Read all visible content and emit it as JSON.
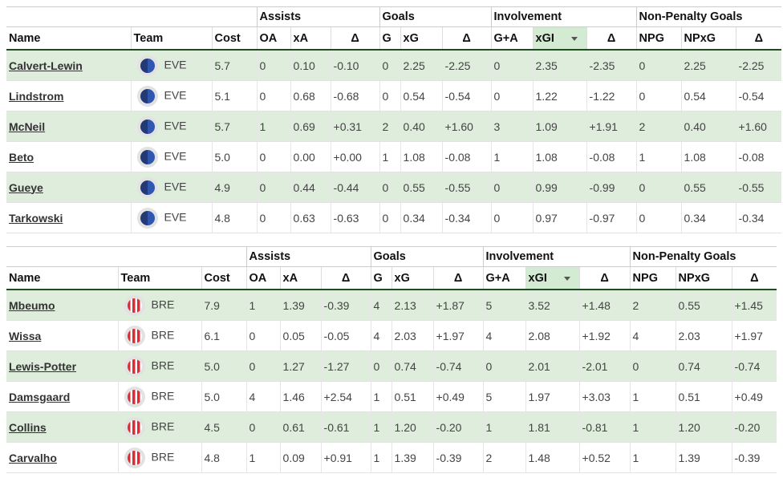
{
  "groups": {
    "assists": "Assists",
    "goals": "Goals",
    "involvement": "Involvement",
    "npg": "Non-Penalty Goals"
  },
  "columns": {
    "name": "Name",
    "team": "Team",
    "cost": "Cost",
    "oa": "OA",
    "xa": "xA",
    "delta": "Δ",
    "g": "G",
    "xg": "xG",
    "ga": "G+A",
    "xgi": "xGI",
    "npg": "NPG",
    "npxg": "NPxG"
  },
  "sort": {
    "column": "xGI",
    "direction": "descending"
  },
  "colors": {
    "row_alt": "#deeddc",
    "sorted_header": "#d3ebd2",
    "header_rule": "#1f4d1f",
    "eve": "#2f56b0",
    "bre": "#e02b35"
  },
  "tables": [
    {
      "team_icon": "eve",
      "rows": [
        [
          "Calvert-Lewin",
          "EVE",
          "5.7",
          "0",
          "0.10",
          "-0.10",
          "0",
          "2.25",
          "-2.25",
          "0",
          "2.35",
          "-2.35",
          "0",
          "2.25",
          "-2.25"
        ],
        [
          "Lindstrom",
          "EVE",
          "5.1",
          "0",
          "0.68",
          "-0.68",
          "0",
          "0.54",
          "-0.54",
          "0",
          "1.22",
          "-1.22",
          "0",
          "0.54",
          "-0.54"
        ],
        [
          "McNeil",
          "EVE",
          "5.7",
          "1",
          "0.69",
          "+0.31",
          "2",
          "0.40",
          "+1.60",
          "3",
          "1.09",
          "+1.91",
          "2",
          "0.40",
          "+1.60"
        ],
        [
          "Beto",
          "EVE",
          "5.0",
          "0",
          "0.00",
          "+0.00",
          "1",
          "1.08",
          "-0.08",
          "1",
          "1.08",
          "-0.08",
          "1",
          "1.08",
          "-0.08"
        ],
        [
          "Gueye",
          "EVE",
          "4.9",
          "0",
          "0.44",
          "-0.44",
          "0",
          "0.55",
          "-0.55",
          "0",
          "0.99",
          "-0.99",
          "0",
          "0.55",
          "-0.55"
        ],
        [
          "Tarkowski",
          "EVE",
          "4.8",
          "0",
          "0.63",
          "-0.63",
          "0",
          "0.34",
          "-0.34",
          "0",
          "0.97",
          "-0.97",
          "0",
          "0.34",
          "-0.34"
        ]
      ]
    },
    {
      "team_icon": "bre",
      "rows": [
        [
          "Mbeumo",
          "BRE",
          "7.9",
          "1",
          "1.39",
          "-0.39",
          "4",
          "2.13",
          "+1.87",
          "5",
          "3.52",
          "+1.48",
          "2",
          "0.55",
          "+1.45"
        ],
        [
          "Wissa",
          "BRE",
          "6.1",
          "0",
          "0.05",
          "-0.05",
          "4",
          "2.03",
          "+1.97",
          "4",
          "2.08",
          "+1.92",
          "4",
          "2.03",
          "+1.97"
        ],
        [
          "Lewis-Potter",
          "BRE",
          "5.0",
          "0",
          "1.27",
          "-1.27",
          "0",
          "0.74",
          "-0.74",
          "0",
          "2.01",
          "-2.01",
          "0",
          "0.74",
          "-0.74"
        ],
        [
          "Damsgaard",
          "BRE",
          "5.0",
          "4",
          "1.46",
          "+2.54",
          "1",
          "0.51",
          "+0.49",
          "5",
          "1.97",
          "+3.03",
          "1",
          "0.51",
          "+0.49"
        ],
        [
          "Collins",
          "BRE",
          "4.5",
          "0",
          "0.61",
          "-0.61",
          "1",
          "1.20",
          "-0.20",
          "1",
          "1.81",
          "-0.81",
          "1",
          "1.20",
          "-0.20"
        ],
        [
          "Carvalho",
          "BRE",
          "4.8",
          "1",
          "0.09",
          "+0.91",
          "1",
          "1.39",
          "-0.39",
          "2",
          "1.48",
          "+0.52",
          "1",
          "1.39",
          "-0.39"
        ]
      ]
    }
  ]
}
